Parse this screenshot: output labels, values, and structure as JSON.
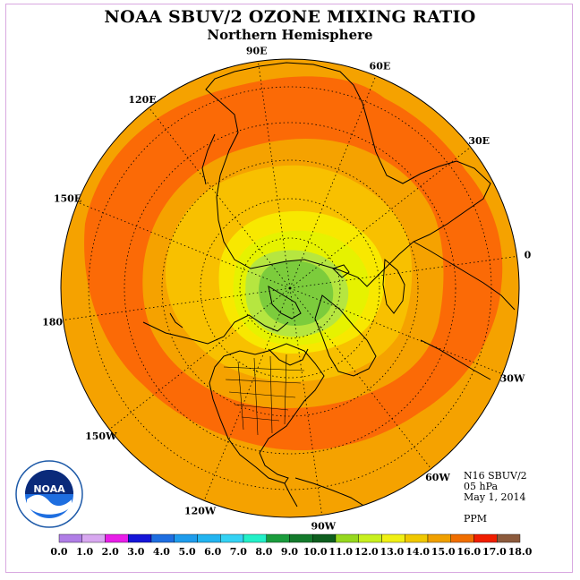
{
  "title": "NOAA SBUV/2 OZONE MIXING RATIO",
  "subtitle": "Northern Hemisphere",
  "longitude_labels": [
    {
      "text": "90E",
      "deg": 90
    },
    {
      "text": "120E",
      "deg": 120
    },
    {
      "text": "60E",
      "deg": 60
    },
    {
      "text": "150E",
      "deg": 150
    },
    {
      "text": "30E",
      "deg": 30
    },
    {
      "text": "180",
      "deg": 180
    },
    {
      "text": "0",
      "deg": 0
    },
    {
      "text": "150W",
      "deg": 210
    },
    {
      "text": "30W",
      "deg": 330
    },
    {
      "text": "120W",
      "deg": 240
    },
    {
      "text": "60W",
      "deg": 300
    },
    {
      "text": "90W",
      "deg": 270
    }
  ],
  "info": {
    "satellite": "N16 SBUV/2",
    "level": "05 hPa",
    "date": "May 1, 2014",
    "units": "PPM"
  },
  "logo": {
    "text": "NOAA"
  },
  "colorbar": {
    "colors": [
      "#b07ee6",
      "#d8a8f0",
      "#e81ee8",
      "#1515d8",
      "#1e6ee0",
      "#1e9cec",
      "#22b4f0",
      "#34d2f4",
      "#22f0c8",
      "#1a9c3c",
      "#137a2c",
      "#0e5e1e",
      "#96d81e",
      "#c8f01e",
      "#f0f014",
      "#f0c800",
      "#f0a000",
      "#f06e00",
      "#f01e00",
      "#8c5a3c"
    ],
    "labels": [
      "0.0",
      "1.0",
      "2.0",
      "3.0",
      "4.0",
      "5.0",
      "6.0",
      "7.0",
      "8.0",
      "9.0",
      "10.0",
      "11.0",
      "12.0",
      "13.0",
      "14.0",
      "15.0",
      "16.0",
      "17.0",
      "18.0"
    ]
  },
  "colors": {
    "band_outer": "#f5a200",
    "band_16": "#fb6a06",
    "band_15": "#f5a200",
    "band_14": "#f8c000",
    "band_13": "#f8e800",
    "band_12": "#e6f200",
    "band_11": "#b6e640",
    "band_10": "#7ccc3c"
  }
}
